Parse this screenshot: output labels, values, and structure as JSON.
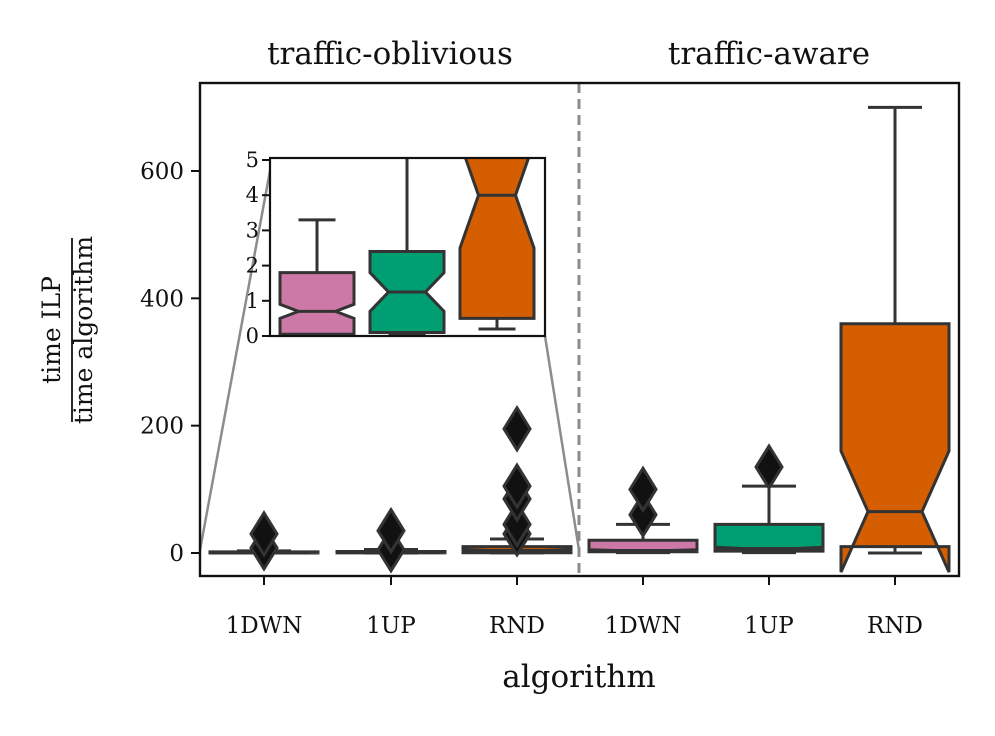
{
  "chart_data": {
    "type": "box",
    "panels": [
      "traffic-oblivious",
      "traffic-aware"
    ],
    "xlabel": "algorithm",
    "ylabel": {
      "numerator": "time ILP",
      "denominator": "time algorithm"
    },
    "ylim": [
      -35,
      730
    ],
    "yticks": [
      0,
      200,
      400,
      600
    ],
    "ytick_labels": [
      "0",
      "200",
      "400",
      "600"
    ],
    "categories": [
      "1DWN",
      "1UP",
      "RND",
      "1DWN",
      "1UP",
      "RND"
    ],
    "colors": {
      "1DWN": "#cc79a7",
      "1UP": "#009e73",
      "RND": "#d55e00"
    },
    "boxes": [
      {
        "panel": "traffic-oblivious",
        "category": "1DWN",
        "q1": 0.05,
        "median": 0.7,
        "q3": 1.8,
        "notch_low": 0.5,
        "notch_high": 0.9,
        "whisker_low": 0,
        "whisker_high": 3.3,
        "fliers": [
          8,
          30
        ]
      },
      {
        "panel": "traffic-oblivious",
        "category": "1UP",
        "q1": 0.1,
        "median": 1.25,
        "q3": 2.4,
        "notch_low": 0.7,
        "notch_high": 1.8,
        "whisker_low": 0.05,
        "whisker_high": 5.5,
        "fliers": [
          5,
          35
        ]
      },
      {
        "panel": "traffic-oblivious",
        "category": "RND",
        "q1": 0.5,
        "median": 4,
        "q3": 10,
        "notch_low": 2.5,
        "notch_high": 5.5,
        "whisker_low": 0.2,
        "whisker_high": 22,
        "fliers": [
          30,
          45,
          85,
          105,
          195
        ]
      },
      {
        "panel": "traffic-aware",
        "category": "1DWN",
        "q1": 2,
        "median": 4,
        "q3": 20,
        "notch_low": 3,
        "notch_high": 5,
        "whisker_low": 0.5,
        "whisker_high": 45,
        "fliers": [
          60,
          100
        ]
      },
      {
        "panel": "traffic-aware",
        "category": "1UP",
        "q1": 3,
        "median": 7,
        "q3": 45,
        "notch_low": 5,
        "notch_high": 9,
        "whisker_low": 0.5,
        "whisker_high": 105,
        "fliers": [
          135
        ]
      },
      {
        "panel": "traffic-aware",
        "category": "RND",
        "q1": 10,
        "median": 65,
        "q3": 360,
        "notch_low": -30,
        "notch_high": 160,
        "whisker_low": 0,
        "whisker_high": 700,
        "fliers": []
      }
    ],
    "inset": {
      "panel": "traffic-oblivious",
      "ylim": [
        0,
        5
      ],
      "yticks": [
        0,
        1,
        2,
        3,
        4,
        5
      ],
      "ytick_labels": [
        "0",
        "1",
        "2",
        "3",
        "4",
        "5"
      ]
    }
  }
}
